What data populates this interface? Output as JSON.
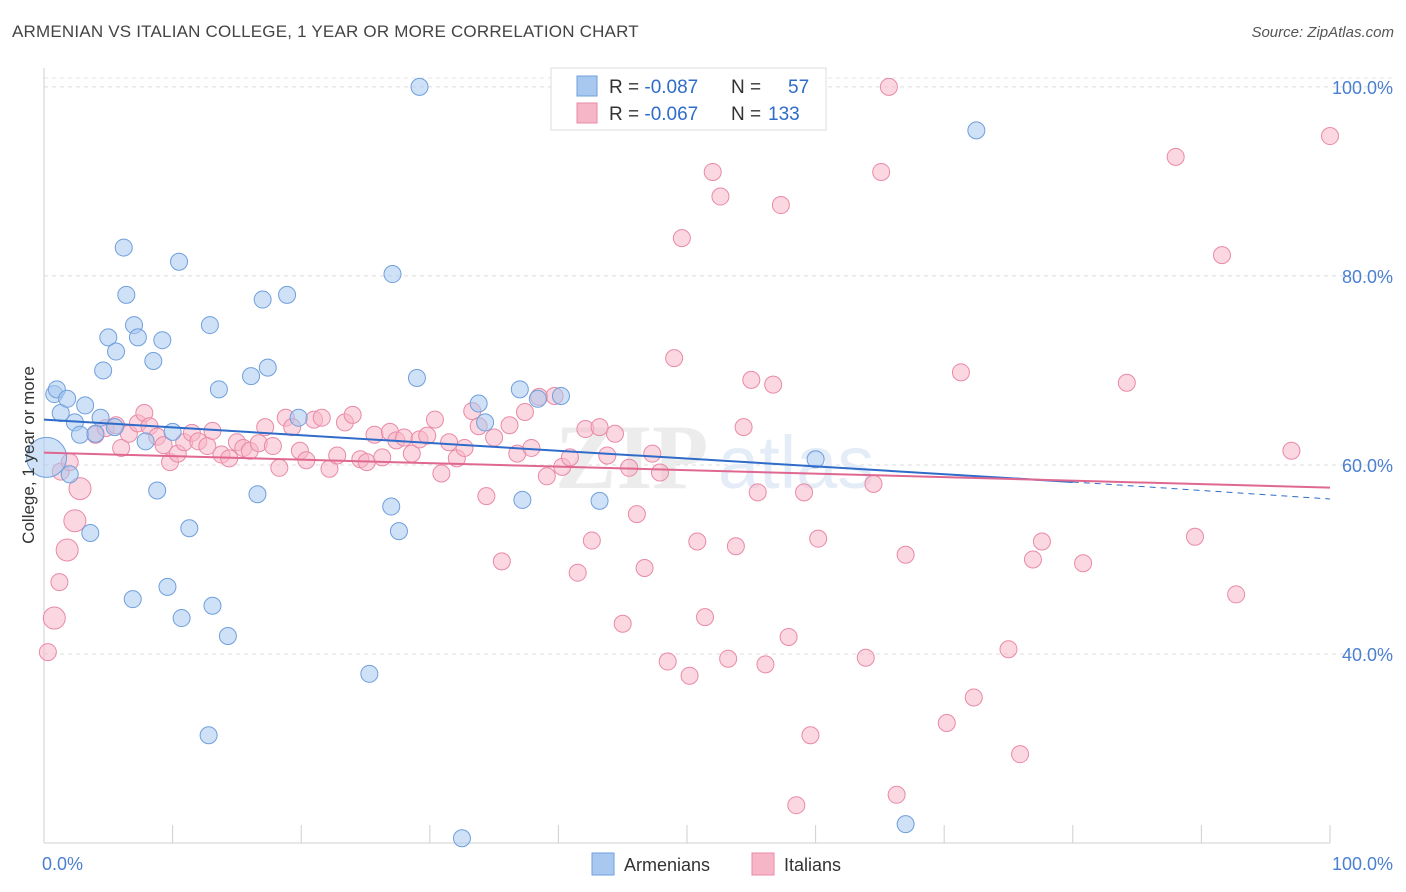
{
  "header": {
    "title": "ARMENIAN VS ITALIAN COLLEGE, 1 YEAR OR MORE CORRELATION CHART",
    "source": "Source: ZipAtlas.com"
  },
  "legend_box": {
    "rows": [
      {
        "r_label": "R = ",
        "r_value": "-0.087",
        "n_label": "N = ",
        "n_value": "57"
      },
      {
        "r_label": "R = ",
        "r_value": "-0.067",
        "n_label": "N = ",
        "n_value": "133"
      }
    ]
  },
  "watermark": {
    "zip": "ZIP",
    "atlas": "atlas"
  },
  "colors": {
    "armenians_fill": "#a8c8f0",
    "armenians_stroke": "#6f9fdc",
    "armenians_line": "#2f6cc9",
    "italians_fill": "#f7b6c8",
    "italians_stroke": "#e98aa6",
    "italians_line": "#e06890",
    "axis_text": "#4a7fd1"
  },
  "chart_data": {
    "type": "scatter",
    "title": "ARMENIAN VS ITALIAN COLLEGE, 1 YEAR OR MORE CORRELATION CHART",
    "ylabel": "College, 1 year or more",
    "xlabel": "",
    "xlim": [
      0,
      100
    ],
    "ylim": [
      20,
      102
    ],
    "x_tick_labels": [
      "0.0%",
      "100.0%"
    ],
    "y_ticks": [
      40,
      60,
      80,
      100
    ],
    "y_tick_labels": [
      "40.0%",
      "60.0%",
      "80.0%",
      "100.0%"
    ],
    "grid": true,
    "legend": {
      "placement": "bottom-center",
      "entries": [
        "Armenians",
        "Italians"
      ]
    },
    "series": [
      {
        "name": "Armenians",
        "r": -0.087,
        "n": 57,
        "trend": {
          "x": [
            0,
            80
          ],
          "y": [
            64.8,
            58.2
          ],
          "dashed_to": [
            100,
            56.4
          ]
        },
        "points": [
          {
            "x": 0.2,
            "y": 60.8,
            "s": 3
          },
          {
            "x": 0.8,
            "y": 67.5
          },
          {
            "x": 1.0,
            "y": 68.0
          },
          {
            "x": 1.3,
            "y": 65.5
          },
          {
            "x": 1.8,
            "y": 67.0
          },
          {
            "x": 2.0,
            "y": 59.0
          },
          {
            "x": 2.4,
            "y": 64.5
          },
          {
            "x": 2.8,
            "y": 63.2
          },
          {
            "x": 3.2,
            "y": 66.3
          },
          {
            "x": 3.6,
            "y": 52.8
          },
          {
            "x": 4.0,
            "y": 63.3
          },
          {
            "x": 4.4,
            "y": 65.0
          },
          {
            "x": 4.6,
            "y": 70.0
          },
          {
            "x": 5.0,
            "y": 73.5
          },
          {
            "x": 5.5,
            "y": 64.0
          },
          {
            "x": 5.6,
            "y": 72.0
          },
          {
            "x": 6.2,
            "y": 83.0
          },
          {
            "x": 6.4,
            "y": 78.0
          },
          {
            "x": 6.9,
            "y": 45.8
          },
          {
            "x": 7.0,
            "y": 74.8
          },
          {
            "x": 7.3,
            "y": 73.5
          },
          {
            "x": 7.9,
            "y": 62.5
          },
          {
            "x": 8.5,
            "y": 71.0
          },
          {
            "x": 8.8,
            "y": 57.3
          },
          {
            "x": 9.2,
            "y": 73.2
          },
          {
            "x": 9.6,
            "y": 47.1
          },
          {
            "x": 10.0,
            "y": 63.5
          },
          {
            "x": 10.5,
            "y": 81.5
          },
          {
            "x": 10.7,
            "y": 43.8
          },
          {
            "x": 11.3,
            "y": 53.3
          },
          {
            "x": 12.8,
            "y": 31.4
          },
          {
            "x": 12.9,
            "y": 74.8
          },
          {
            "x": 13.1,
            "y": 45.1
          },
          {
            "x": 13.6,
            "y": 68.0
          },
          {
            "x": 14.3,
            "y": 41.9
          },
          {
            "x": 16.1,
            "y": 69.4
          },
          {
            "x": 16.6,
            "y": 56.9
          },
          {
            "x": 17.0,
            "y": 77.5
          },
          {
            "x": 17.4,
            "y": 70.3
          },
          {
            "x": 18.9,
            "y": 78.0
          },
          {
            "x": 19.8,
            "y": 65.0
          },
          {
            "x": 25.3,
            "y": 37.9
          },
          {
            "x": 27.0,
            "y": 55.6
          },
          {
            "x": 27.1,
            "y": 80.2
          },
          {
            "x": 27.6,
            "y": 53.0
          },
          {
            "x": 29.0,
            "y": 69.2
          },
          {
            "x": 29.2,
            "y": 100.0
          },
          {
            "x": 32.5,
            "y": 20.5
          },
          {
            "x": 33.8,
            "y": 66.5
          },
          {
            "x": 34.3,
            "y": 64.5
          },
          {
            "x": 37.0,
            "y": 68.0
          },
          {
            "x": 37.2,
            "y": 56.3
          },
          {
            "x": 38.4,
            "y": 67.0
          },
          {
            "x": 40.2,
            "y": 67.3
          },
          {
            "x": 43.2,
            "y": 56.2
          },
          {
            "x": 60.0,
            "y": 60.6
          },
          {
            "x": 67.0,
            "y": 22.0
          },
          {
            "x": 72.5,
            "y": 95.4
          }
        ]
      },
      {
        "name": "Italians",
        "r": -0.067,
        "n": 133,
        "trend": {
          "x": [
            0,
            100
          ],
          "y": [
            61.3,
            57.6
          ]
        },
        "points": [
          {
            "x": 0.3,
            "y": 40.2
          },
          {
            "x": 0.8,
            "y": 43.8,
            "s": 2
          },
          {
            "x": 1.2,
            "y": 47.6
          },
          {
            "x": 1.3,
            "y": 59.3
          },
          {
            "x": 1.8,
            "y": 51.0,
            "s": 2
          },
          {
            "x": 2.0,
            "y": 60.3
          },
          {
            "x": 2.4,
            "y": 54.1,
            "s": 2
          },
          {
            "x": 2.8,
            "y": 57.5,
            "s": 2
          },
          {
            "x": 4.0,
            "y": 63.2
          },
          {
            "x": 4.8,
            "y": 63.9
          },
          {
            "x": 5.6,
            "y": 64.2
          },
          {
            "x": 6.0,
            "y": 61.8
          },
          {
            "x": 6.6,
            "y": 63.3
          },
          {
            "x": 7.3,
            "y": 64.4
          },
          {
            "x": 7.8,
            "y": 65.5
          },
          {
            "x": 8.2,
            "y": 64.1
          },
          {
            "x": 8.8,
            "y": 63.0
          },
          {
            "x": 9.3,
            "y": 62.1
          },
          {
            "x": 9.8,
            "y": 60.3
          },
          {
            "x": 10.4,
            "y": 61.2
          },
          {
            "x": 10.9,
            "y": 62.4
          },
          {
            "x": 11.5,
            "y": 63.4
          },
          {
            "x": 12.0,
            "y": 62.5
          },
          {
            "x": 12.7,
            "y": 62.0
          },
          {
            "x": 13.1,
            "y": 63.6
          },
          {
            "x": 13.8,
            "y": 61.1
          },
          {
            "x": 14.4,
            "y": 60.7
          },
          {
            "x": 15.0,
            "y": 62.4
          },
          {
            "x": 15.5,
            "y": 61.8
          },
          {
            "x": 16.0,
            "y": 61.5
          },
          {
            "x": 16.7,
            "y": 62.3
          },
          {
            "x": 17.2,
            "y": 64.0
          },
          {
            "x": 17.8,
            "y": 62.0
          },
          {
            "x": 18.3,
            "y": 59.7
          },
          {
            "x": 18.8,
            "y": 65.0
          },
          {
            "x": 19.3,
            "y": 64.0
          },
          {
            "x": 19.9,
            "y": 61.5
          },
          {
            "x": 20.4,
            "y": 60.5
          },
          {
            "x": 21.0,
            "y": 64.8
          },
          {
            "x": 21.6,
            "y": 65.0
          },
          {
            "x": 22.2,
            "y": 59.6
          },
          {
            "x": 22.8,
            "y": 61.0
          },
          {
            "x": 23.4,
            "y": 64.5
          },
          {
            "x": 24.0,
            "y": 65.3
          },
          {
            "x": 24.6,
            "y": 60.6
          },
          {
            "x": 25.1,
            "y": 60.3
          },
          {
            "x": 25.7,
            "y": 63.2
          },
          {
            "x": 26.3,
            "y": 60.8
          },
          {
            "x": 26.9,
            "y": 63.5
          },
          {
            "x": 27.4,
            "y": 62.6
          },
          {
            "x": 28.0,
            "y": 62.9
          },
          {
            "x": 28.6,
            "y": 61.2
          },
          {
            "x": 29.2,
            "y": 62.7
          },
          {
            "x": 29.8,
            "y": 63.1
          },
          {
            "x": 30.4,
            "y": 64.8
          },
          {
            "x": 30.9,
            "y": 59.1
          },
          {
            "x": 31.5,
            "y": 62.4
          },
          {
            "x": 32.1,
            "y": 60.7
          },
          {
            "x": 32.7,
            "y": 61.8
          },
          {
            "x": 33.3,
            "y": 65.7
          },
          {
            "x": 33.8,
            "y": 64.1
          },
          {
            "x": 34.4,
            "y": 56.7
          },
          {
            "x": 35.0,
            "y": 62.9
          },
          {
            "x": 35.6,
            "y": 49.8
          },
          {
            "x": 36.2,
            "y": 64.2
          },
          {
            "x": 36.8,
            "y": 61.2
          },
          {
            "x": 37.4,
            "y": 65.6
          },
          {
            "x": 37.9,
            "y": 61.8
          },
          {
            "x": 38.5,
            "y": 67.2
          },
          {
            "x": 39.1,
            "y": 58.8
          },
          {
            "x": 39.7,
            "y": 67.3
          },
          {
            "x": 40.3,
            "y": 59.8
          },
          {
            "x": 40.9,
            "y": 60.8
          },
          {
            "x": 41.5,
            "y": 48.6
          },
          {
            "x": 42.1,
            "y": 63.8
          },
          {
            "x": 42.6,
            "y": 52.0
          },
          {
            "x": 43.2,
            "y": 64.0
          },
          {
            "x": 43.8,
            "y": 61.0
          },
          {
            "x": 44.4,
            "y": 63.3
          },
          {
            "x": 45.0,
            "y": 43.2
          },
          {
            "x": 45.5,
            "y": 59.7
          },
          {
            "x": 46.1,
            "y": 54.8
          },
          {
            "x": 46.7,
            "y": 49.1
          },
          {
            "x": 47.3,
            "y": 61.2
          },
          {
            "x": 47.9,
            "y": 59.2
          },
          {
            "x": 48.5,
            "y": 39.2
          },
          {
            "x": 49.0,
            "y": 71.3
          },
          {
            "x": 49.6,
            "y": 84.0
          },
          {
            "x": 50.2,
            "y": 37.7
          },
          {
            "x": 50.8,
            "y": 51.9
          },
          {
            "x": 51.4,
            "y": 43.9
          },
          {
            "x": 52.0,
            "y": 91.0
          },
          {
            "x": 52.6,
            "y": 88.4
          },
          {
            "x": 53.2,
            "y": 39.5
          },
          {
            "x": 53.8,
            "y": 51.4
          },
          {
            "x": 54.4,
            "y": 64.0
          },
          {
            "x": 55.0,
            "y": 69.0
          },
          {
            "x": 55.5,
            "y": 57.1
          },
          {
            "x": 56.1,
            "y": 38.9
          },
          {
            "x": 56.7,
            "y": 68.5
          },
          {
            "x": 57.3,
            "y": 87.5
          },
          {
            "x": 57.9,
            "y": 41.8
          },
          {
            "x": 58.5,
            "y": 24.0
          },
          {
            "x": 59.1,
            "y": 57.1
          },
          {
            "x": 59.6,
            "y": 31.4
          },
          {
            "x": 60.2,
            "y": 52.2
          },
          {
            "x": 63.9,
            "y": 39.6
          },
          {
            "x": 64.5,
            "y": 58.0
          },
          {
            "x": 65.1,
            "y": 91.0
          },
          {
            "x": 65.7,
            "y": 100.0
          },
          {
            "x": 66.3,
            "y": 25.1
          },
          {
            "x": 67.0,
            "y": 50.5
          },
          {
            "x": 70.2,
            "y": 32.7
          },
          {
            "x": 71.3,
            "y": 69.8
          },
          {
            "x": 72.3,
            "y": 35.4
          },
          {
            "x": 75.0,
            "y": 40.5
          },
          {
            "x": 75.9,
            "y": 29.4
          },
          {
            "x": 76.9,
            "y": 50.0
          },
          {
            "x": 77.6,
            "y": 51.9
          },
          {
            "x": 80.8,
            "y": 49.6
          },
          {
            "x": 84.2,
            "y": 68.7
          },
          {
            "x": 88.0,
            "y": 92.6
          },
          {
            "x": 89.5,
            "y": 52.4
          },
          {
            "x": 91.6,
            "y": 82.2
          },
          {
            "x": 92.7,
            "y": 46.3
          },
          {
            "x": 97.0,
            "y": 61.5
          },
          {
            "x": 100.0,
            "y": 94.8
          }
        ]
      }
    ]
  }
}
